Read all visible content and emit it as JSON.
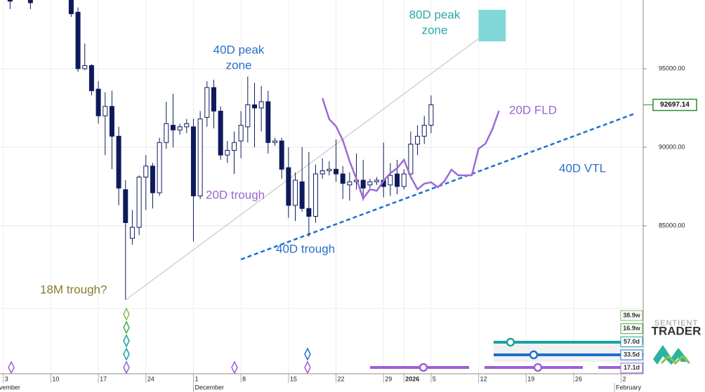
{
  "chart_data": {
    "type": "candlestick",
    "x": [
      "Nov 4",
      "Nov 7",
      "Nov 13",
      "Nov 14",
      "Nov 15",
      "Nov 16",
      "Nov 17",
      "Nov 18",
      "Nov 19",
      "Nov 20",
      "Nov 21",
      "Nov 22",
      "Nov 23",
      "Nov 24",
      "Nov 25",
      "Nov 26",
      "Nov 27",
      "Nov 28",
      "Nov 29",
      "Nov 30",
      "Dec 1",
      "Dec 2",
      "Dec 3",
      "Dec 4",
      "Dec 5",
      "Dec 6",
      "Dec 7",
      "Dec 8",
      "Dec 9",
      "Dec 10",
      "Dec 11",
      "Dec 12",
      "Dec 13",
      "Dec 14",
      "Dec 15",
      "Dec 16",
      "Dec 17",
      "Dec 18",
      "Dec 19",
      "Dec 20",
      "Dec 21",
      "Dec 22",
      "Dec 23",
      "Dec 24",
      "Dec 25",
      "Dec 26",
      "Dec 27",
      "Dec 28",
      "Dec 29",
      "Dec 30",
      "Dec 31",
      "Jan 1",
      "Jan 2",
      "Jan 3",
      "Jan 4",
      "Jan 5"
    ],
    "open": [
      99800,
      99600,
      99400,
      98600,
      95000,
      95200,
      93700,
      92000,
      92600,
      90700,
      87300,
      84200,
      84900,
      88100,
      88800,
      87100,
      90300,
      91400,
      91100,
      91300,
      91300,
      86900,
      91900,
      93800,
      92300,
      89500,
      89800,
      90400,
      91300,
      92700,
      92500,
      92900,
      90300,
      90400,
      88700,
      86300,
      87800,
      86100,
      85600,
      88300,
      88500,
      88600,
      88300,
      87600,
      87800,
      87900,
      87600,
      87800,
      87900,
      87600,
      88300,
      87500,
      88300,
      90200,
      90700,
      91400
    ],
    "high": [
      100500,
      100200,
      99900,
      98900,
      96600,
      95300,
      94200,
      93500,
      93600,
      91300,
      87900,
      86000,
      88200,
      89500,
      89000,
      90600,
      92900,
      93400,
      91500,
      91800,
      91800,
      92300,
      94200,
      94300,
      92600,
      90400,
      91000,
      92300,
      94500,
      94100,
      93900,
      93600,
      90600,
      90600,
      90000,
      88400,
      90000,
      89700,
      88900,
      89300,
      89100,
      90500,
      88800,
      88400,
      89600,
      89200,
      88000,
      88100,
      90300,
      89000,
      89200,
      88600,
      91000,
      91400,
      92000,
      93300
    ],
    "low": [
      98800,
      98800,
      98300,
      94800,
      94900,
      93300,
      91500,
      89500,
      88600,
      86300,
      80300,
      83800,
      84400,
      86000,
      86100,
      86900,
      89900,
      90000,
      90800,
      90900,
      84000,
      86700,
      91300,
      91200,
      89200,
      89000,
      88300,
      89300,
      90300,
      90000,
      91000,
      89600,
      90100,
      88000,
      85500,
      85300,
      85900,
      84300,
      85200,
      88000,
      88200,
      87800,
      86700,
      86600,
      87300,
      86600,
      87400,
      87600,
      86800,
      86900,
      87000,
      87300,
      88000,
      89500,
      90200,
      90900
    ],
    "close": [
      99300,
      99200,
      98500,
      95000,
      95200,
      93600,
      92000,
      92600,
      90700,
      87400,
      85200,
      84900,
      88100,
      88800,
      87100,
      90300,
      91500,
      91100,
      91300,
      91500,
      86900,
      91800,
      93800,
      92300,
      89500,
      89800,
      90300,
      91400,
      92700,
      92500,
      92900,
      90300,
      90400,
      88600,
      86300,
      87900,
      86100,
      85600,
      88300,
      88500,
      88600,
      88300,
      87700,
      87800,
      87900,
      87400,
      87800,
      87900,
      87500,
      88200,
      87500,
      88300,
      90200,
      90700,
      91400,
      92700
    ],
    "up_color": "#ffffff",
    "down_color": "#0f1a5c",
    "edge_color": "#0f1a5c",
    "ylim": [
      74950,
      99375
    ],
    "yticks": [
      {
        "value": 85000,
        "label": "85000.00"
      },
      {
        "value": 90000,
        "label": "90000.00"
      },
      {
        "value": 95000,
        "label": "95000.00"
      }
    ],
    "xticks": [
      {
        "value": "Nov 3",
        "label": "3"
      },
      {
        "value": "Nov 10",
        "label": "10"
      },
      {
        "value": "Nov 17",
        "label": "17"
      },
      {
        "value": "Nov 24",
        "label": "24"
      },
      {
        "value": "Dec 1",
        "label": "1"
      },
      {
        "value": "Dec 8",
        "label": "8"
      },
      {
        "value": "Dec 15",
        "label": "15"
      },
      {
        "value": "Dec 22",
        "label": "22"
      },
      {
        "value": "Dec 29",
        "label": "29"
      },
      {
        "value": "Jan 1",
        "label": "2026"
      },
      {
        "value": "Jan 5",
        "label": "5"
      },
      {
        "value": "Jan 12",
        "label": "12"
      },
      {
        "value": "Jan 19",
        "label": "19"
      },
      {
        "value": "Jan 26",
        "label": "26"
      },
      {
        "value": "Feb 2",
        "label": "2"
      }
    ],
    "month_ticks": [
      {
        "value": "Nov 1",
        "label": "November"
      },
      {
        "value": "Dec 1",
        "label": "December"
      },
      {
        "value": "Feb 1",
        "label": "February"
      }
    ],
    "grid": true,
    "last_price": {
      "value": 92697.14,
      "label": "92697.14",
      "color": "#2e8b2e"
    },
    "fld": {
      "color": "#9b6bd6",
      "x": [
        "Dec 20",
        "Dec 21",
        "Dec 22",
        "Dec 23",
        "Dec 24",
        "Dec 25",
        "Dec 26",
        "Dec 27",
        "Dec 28",
        "Dec 29",
        "Dec 30",
        "Dec 31",
        "Jan 1",
        "Jan 2",
        "Jan 3",
        "Jan 4",
        "Jan 5",
        "Jan 6",
        "Jan 7",
        "Jan 8",
        "Jan 9",
        "Jan 10",
        "Jan 11",
        "Jan 12",
        "Jan 13",
        "Jan 14",
        "Jan 15"
      ],
      "values": [
        93125,
        91786,
        91339,
        90446,
        89107,
        87991,
        86741,
        87321,
        87232,
        87857,
        88348,
        88661,
        89196,
        88125,
        87321,
        87679,
        87768,
        87455,
        87857,
        88571,
        88214,
        88214,
        88214,
        89911,
        90223,
        91116,
        92321
      ]
    },
    "trend_lines": [
      {
        "color": "#bdbdbd",
        "dash": false,
        "x": [
          "Nov 21",
          "Jan 12"
        ],
        "values": [
          80268,
          96920
        ]
      },
      {
        "color": "#1e6fd0",
        "dash": true,
        "x": [
          "Dec 8",
          "Feb 4"
        ],
        "values": [
          82857,
          92143
        ]
      }
    ],
    "peak_zone": {
      "color": "#80d8d8",
      "x": [
        "Jan 12",
        "Jan 16"
      ],
      "values": [
        96740,
        98750
      ]
    },
    "annotations": [
      {
        "lines": [
          "80D peak",
          "zone"
        ],
        "color": "#2aa7a7"
      },
      {
        "lines": [
          "40D peak",
          "zone"
        ],
        "color": "#2a6fc9"
      },
      {
        "lines": [
          "20D FLD"
        ],
        "color": "#9966cc"
      },
      {
        "lines": [
          "40D VTL"
        ],
        "color": "#2a6fc9"
      },
      {
        "lines": [
          "20D trough"
        ],
        "color": "#9966cc"
      },
      {
        "lines": [
          "40D trough"
        ],
        "color": "#2a6fc9"
      },
      {
        "lines": [
          "18M trough?"
        ],
        "color": "#8b7b2e"
      }
    ],
    "cycles": [
      {
        "label": "38.9w",
        "color": "#7cc04a"
      },
      {
        "label": "16.9w",
        "color": "#3fae49"
      },
      {
        "label": "57.0d",
        "color": "#17a2a2"
      },
      {
        "label": "33.5d",
        "color": "#1c6fd1"
      },
      {
        "label": "17.1d",
        "color": "#9b5fd6"
      }
    ],
    "logo": [
      "SENTIENT",
      "TRADER"
    ]
  }
}
